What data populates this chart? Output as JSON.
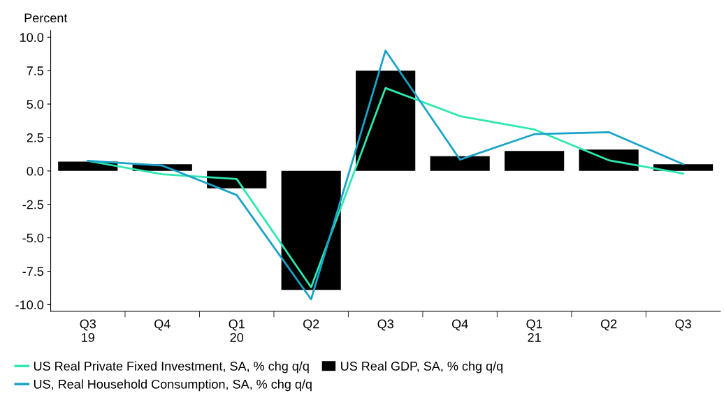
{
  "chart_data": {
    "type": "bar",
    "ylabel": "Percent",
    "categories": [
      "Q3\n19",
      "Q4",
      "Q1\n20",
      "Q2",
      "Q3",
      "Q4",
      "Q1\n21",
      "Q2",
      "Q3"
    ],
    "series": [
      {
        "name": "US Real Private Fixed Investment, SA, % chg q/q",
        "type": "line",
        "color": "#2de8b0",
        "values": [
          0.75,
          -0.25,
          -0.6,
          -8.7,
          6.2,
          4.1,
          3.1,
          0.8,
          -0.2
        ]
      },
      {
        "name": "US Real GDP, SA, % chg q/q",
        "color": "#000000",
        "values": [
          0.7,
          0.5,
          -1.3,
          -8.9,
          7.5,
          1.1,
          1.5,
          1.6,
          0.5
        ]
      },
      {
        "name": "US, Real Household Consumption, SA, % chg q/q",
        "type": "line",
        "color": "#1aa3c8",
        "values": [
          0.75,
          0.4,
          -1.8,
          -9.6,
          9.0,
          0.85,
          2.75,
          2.9,
          0.5
        ]
      }
    ],
    "ylim": [
      -10.5,
      10.5
    ],
    "yticks": [
      {
        "value": -10,
        "label": "-10.0"
      },
      {
        "value": -7.5,
        "label": "-7.5"
      },
      {
        "value": -5,
        "label": "-5.0"
      },
      {
        "value": -2.5,
        "label": "-2.5"
      },
      {
        "value": 0,
        "label": "0.0"
      },
      {
        "value": 2.5,
        "label": "2.5"
      },
      {
        "value": 5,
        "label": "5.0"
      },
      {
        "value": 7.5,
        "label": "7.5"
      },
      {
        "value": 10,
        "label": "10.0"
      }
    ],
    "grid": false,
    "legend": "bottom"
  }
}
